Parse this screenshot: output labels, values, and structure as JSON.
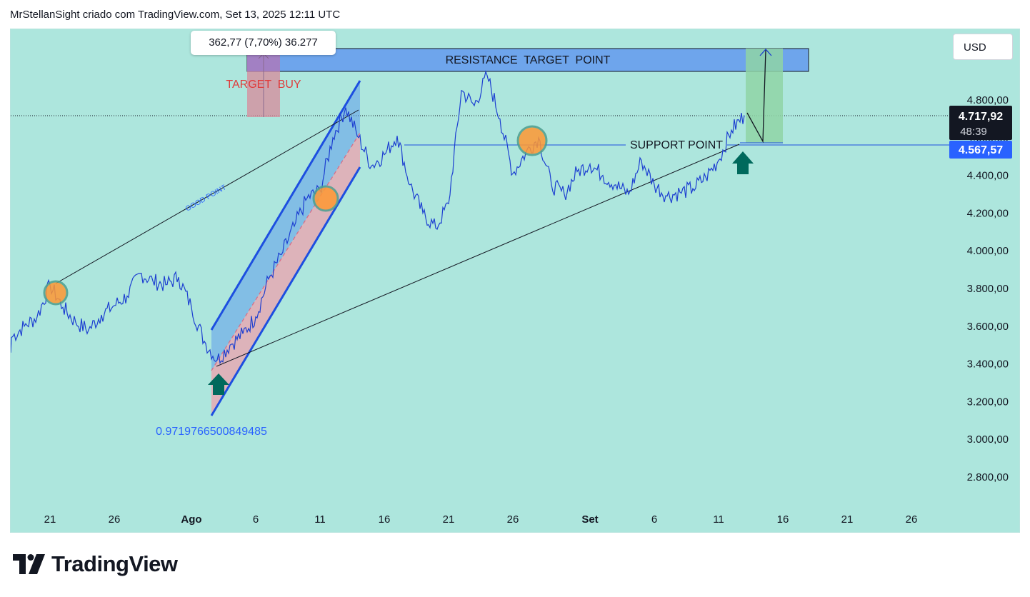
{
  "header": {
    "text": "MrStellanSight criado com TradingView.com, Set 13, 2025 12:11 UTC"
  },
  "currency": "USD",
  "brand": {
    "name": "TradingView"
  },
  "measure_label": "362,77 (7,70%) 36.277",
  "annotations": {
    "resistance": "RESISTANCE  TARGET  POINT",
    "target_buy": "TARGET  BUY",
    "support": "SUPPORT POINT",
    "good_point": "GOOD POINT",
    "fib_value": "0.9719766500849485"
  },
  "price_labels": {
    "current": "4.717,92",
    "countdown": "48:39",
    "support_level": "4.567,57"
  },
  "colors": {
    "background": "#ade6dd",
    "price_line": "#1d3fd1",
    "resistance_box": "#6ea5ec",
    "channel_blue": "#4d8ff0",
    "channel_pink": "#e9a6b2",
    "target_buy": "#d86b86",
    "green_zone": "#8fd3a6",
    "arrow_green": "#00695c",
    "orange_marker": "#ff9833",
    "current_price_bg": "#131722",
    "support_price_bg": "#2962ff"
  },
  "chart_data": {
    "type": "line",
    "title": "",
    "xlabel": "",
    "ylabel": "",
    "currency": "USD",
    "ylim": [
      2650,
      5130
    ],
    "y_ticks": [
      "2.800,00",
      "3.000,00",
      "3.200,00",
      "3.400,00",
      "3.600,00",
      "3.800,00",
      "4.000,00",
      "4.200,00",
      "4.400,00",
      "4.600,00",
      "4.800,00"
    ],
    "y_tick_values": [
      2800,
      3000,
      3200,
      3400,
      3600,
      3800,
      4000,
      4200,
      4400,
      4600,
      4800
    ],
    "x_ticks": [
      "21",
      "26",
      "Ago",
      "6",
      "11",
      "16",
      "21",
      "26",
      "Set",
      "6",
      "11",
      "16",
      "21",
      "26"
    ],
    "x_tick_dates": [
      "2025-07-21",
      "2025-07-26",
      "2025-08-01",
      "2025-08-06",
      "2025-08-11",
      "2025-08-16",
      "2025-08-21",
      "2025-08-26",
      "2025-09-01",
      "2025-09-06",
      "2025-09-11",
      "2025-09-16",
      "2025-09-21",
      "2025-09-26"
    ],
    "series": [
      {
        "x": [
          "2025-07-18",
          "2025-07-19",
          "2025-07-20",
          "2025-07-21",
          "2025-07-22",
          "2025-07-23",
          "2025-07-24",
          "2025-07-25",
          "2025-07-26",
          "2025-07-27",
          "2025-07-28",
          "2025-07-29",
          "2025-07-30",
          "2025-07-31",
          "2025-08-01",
          "2025-08-02",
          "2025-08-03",
          "2025-08-04",
          "2025-08-05",
          "2025-08-06",
          "2025-08-07",
          "2025-08-08",
          "2025-08-09",
          "2025-08-10",
          "2025-08-11",
          "2025-08-12",
          "2025-08-13",
          "2025-08-14",
          "2025-08-15",
          "2025-08-16",
          "2025-08-17",
          "2025-08-18",
          "2025-08-19",
          "2025-08-20",
          "2025-08-21",
          "2025-08-22",
          "2025-08-23",
          "2025-08-24",
          "2025-08-25",
          "2025-08-26",
          "2025-08-27",
          "2025-08-28",
          "2025-08-29",
          "2025-08-30",
          "2025-08-31",
          "2025-09-01",
          "2025-09-02",
          "2025-09-03",
          "2025-09-04",
          "2025-09-05",
          "2025-09-06",
          "2025-09-07",
          "2025-09-08",
          "2025-09-09",
          "2025-09-10",
          "2025-09-11",
          "2025-09-12",
          "2025-09-13"
        ],
        "values": [
          3540,
          3600,
          3650,
          3820,
          3700,
          3620,
          3580,
          3660,
          3710,
          3760,
          3880,
          3840,
          3820,
          3860,
          3700,
          3520,
          3420,
          3500,
          3560,
          3650,
          3850,
          3980,
          4130,
          4280,
          4320,
          4600,
          4760,
          4600,
          4450,
          4510,
          4610,
          4350,
          4200,
          4120,
          4250,
          4850,
          4770,
          4930,
          4700,
          4410,
          4520,
          4600,
          4350,
          4300,
          4420,
          4460,
          4400,
          4350,
          4300,
          4480,
          4350,
          4290,
          4310,
          4330,
          4390,
          4480,
          4640,
          4718
        ]
      }
    ],
    "levels": {
      "support": 4567.57,
      "resistance_zone": [
        4970,
        5090
      ],
      "current": 4717.92
    }
  }
}
